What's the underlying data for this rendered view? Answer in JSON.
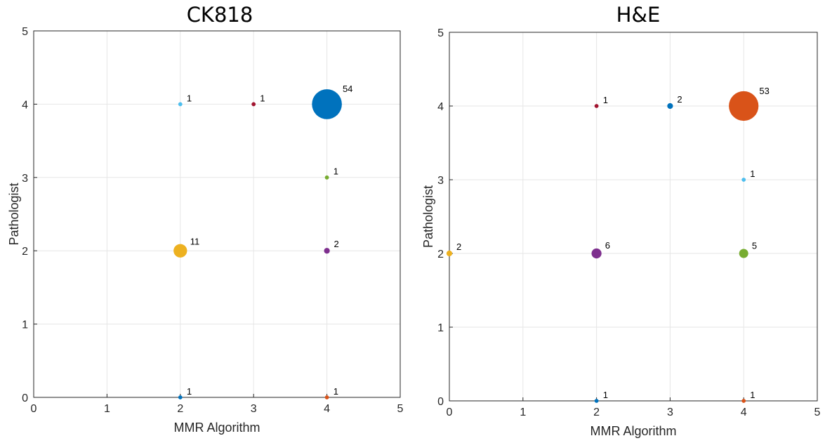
{
  "chart_data": [
    {
      "type": "scatter",
      "title": "CK818",
      "xlabel": "MMR Algorithm",
      "ylabel": "Pathologist",
      "xlim": [
        0,
        5
      ],
      "ylim": [
        0,
        5
      ],
      "xticks": [
        "0",
        "1",
        "2",
        "3",
        "4",
        "5"
      ],
      "yticks": [
        "0",
        "1",
        "2",
        "3",
        "4",
        "5"
      ],
      "grid": true,
      "points": [
        {
          "x": 4,
          "y": 4,
          "count": 54,
          "label": "54",
          "color": "#0072BD"
        },
        {
          "x": 2,
          "y": 2,
          "count": 11,
          "label": "11",
          "color": "#EDB120"
        },
        {
          "x": 4,
          "y": 2,
          "count": 2,
          "label": "2",
          "color": "#7E2F8E"
        },
        {
          "x": 2,
          "y": 4,
          "count": 1,
          "label": "1",
          "color": "#4DBEEE"
        },
        {
          "x": 3,
          "y": 4,
          "count": 1,
          "label": "1",
          "color": "#A2142F"
        },
        {
          "x": 4,
          "y": 3,
          "count": 1,
          "label": "1",
          "color": "#77AC30"
        },
        {
          "x": 2,
          "y": 0,
          "count": 1,
          "label": "1",
          "color": "#0072BD"
        },
        {
          "x": 4,
          "y": 0,
          "count": 1,
          "label": "1",
          "color": "#D95319"
        }
      ]
    },
    {
      "type": "scatter",
      "title": "H&E",
      "xlabel": "MMR Algorithm",
      "ylabel": "Pathologist",
      "xlim": [
        0,
        5
      ],
      "ylim": [
        0,
        5
      ],
      "xticks": [
        "0",
        "1",
        "2",
        "3",
        "4",
        "5"
      ],
      "yticks": [
        "0",
        "1",
        "2",
        "3",
        "4",
        "5"
      ],
      "grid": true,
      "points": [
        {
          "x": 4,
          "y": 4,
          "count": 53,
          "label": "53",
          "color": "#D95319"
        },
        {
          "x": 2,
          "y": 2,
          "count": 6,
          "label": "6",
          "color": "#7E2F8E"
        },
        {
          "x": 4,
          "y": 2,
          "count": 5,
          "label": "5",
          "color": "#77AC30"
        },
        {
          "x": 3,
          "y": 4,
          "count": 2,
          "label": "2",
          "color": "#0072BD"
        },
        {
          "x": 0,
          "y": 2,
          "count": 2,
          "label": "2",
          "color": "#EDB120"
        },
        {
          "x": 2,
          "y": 4,
          "count": 1,
          "label": "1",
          "color": "#A2142F"
        },
        {
          "x": 4,
          "y": 3,
          "count": 1,
          "label": "1",
          "color": "#4DBEEE"
        },
        {
          "x": 2,
          "y": 0,
          "count": 1,
          "label": "1",
          "color": "#0072BD"
        },
        {
          "x": 4,
          "y": 0,
          "count": 1,
          "label": "1",
          "color": "#D95319"
        }
      ]
    }
  ]
}
